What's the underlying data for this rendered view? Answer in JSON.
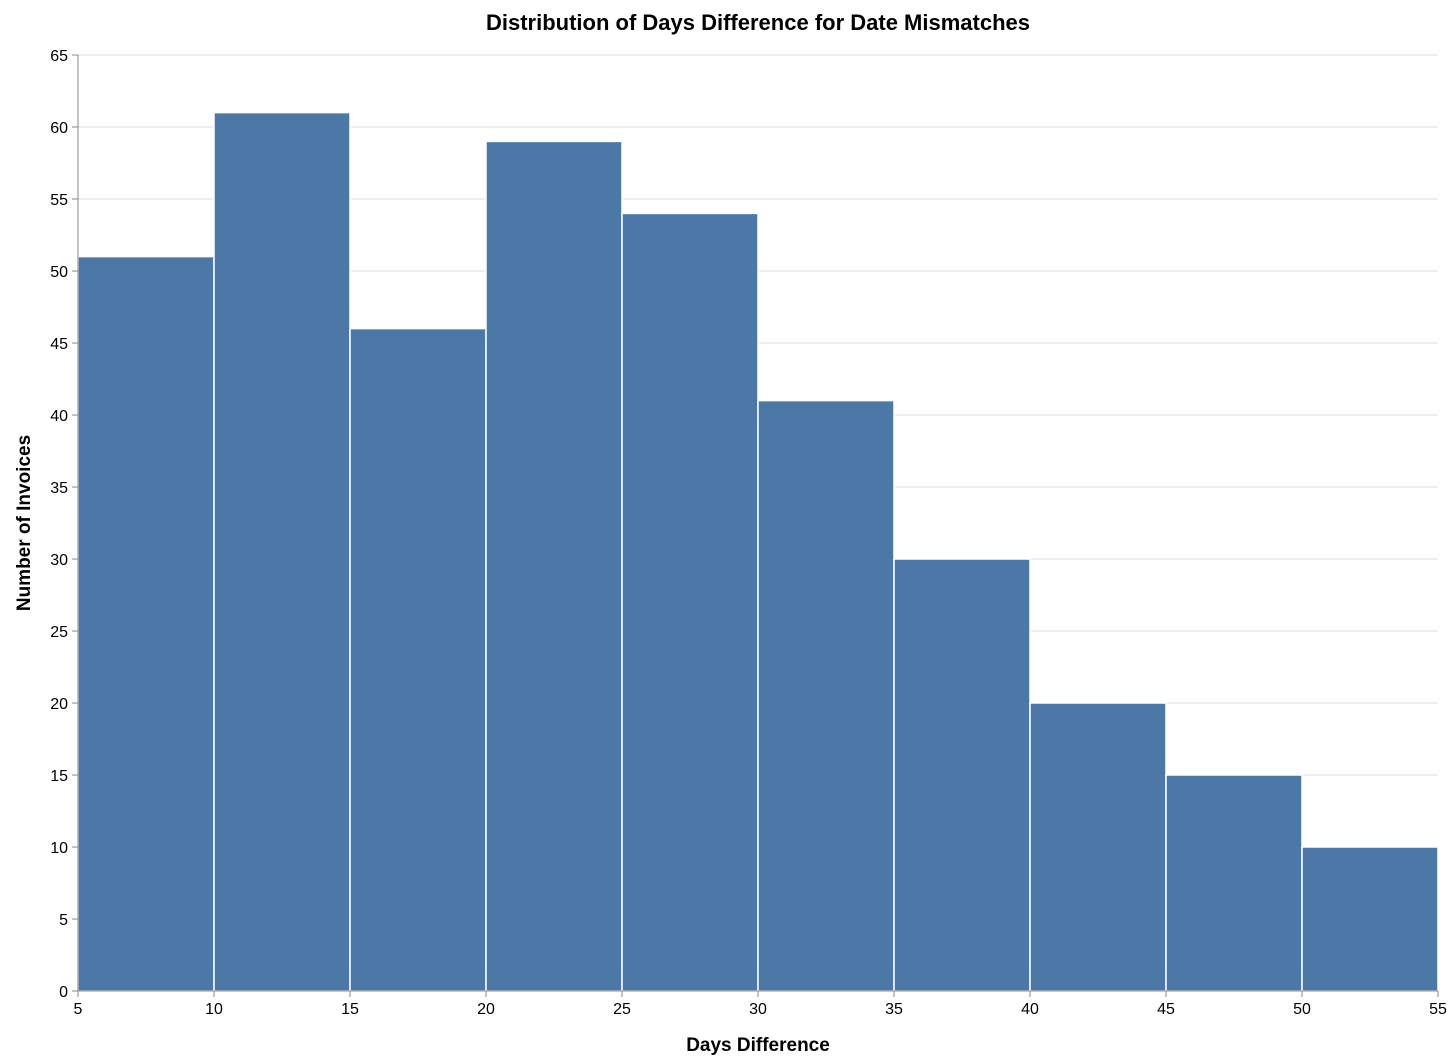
{
  "chart_data": {
    "type": "bar",
    "title": "Distribution of Days Difference for Date Mismatches",
    "xlabel": "Days Difference",
    "ylabel": "Number of Invoices",
    "bins": [
      {
        "start": 5,
        "end": 10,
        "value": 51
      },
      {
        "start": 10,
        "end": 15,
        "value": 61
      },
      {
        "start": 15,
        "end": 20,
        "value": 46
      },
      {
        "start": 20,
        "end": 25,
        "value": 59
      },
      {
        "start": 25,
        "end": 30,
        "value": 54
      },
      {
        "start": 30,
        "end": 35,
        "value": 41
      },
      {
        "start": 35,
        "end": 40,
        "value": 30
      },
      {
        "start": 40,
        "end": 45,
        "value": 20
      },
      {
        "start": 45,
        "end": 50,
        "value": 15
      },
      {
        "start": 50,
        "end": 55,
        "value": 10
      }
    ],
    "xlim": [
      5,
      55
    ],
    "ylim": [
      0,
      65
    ],
    "x_ticks": [
      5,
      10,
      15,
      20,
      25,
      30,
      35,
      40,
      45,
      50,
      55
    ],
    "y_ticks": [
      0,
      5,
      10,
      15,
      20,
      25,
      30,
      35,
      40,
      45,
      50,
      55,
      60,
      65
    ],
    "grid": true,
    "bar_color": "#4c78a8"
  }
}
